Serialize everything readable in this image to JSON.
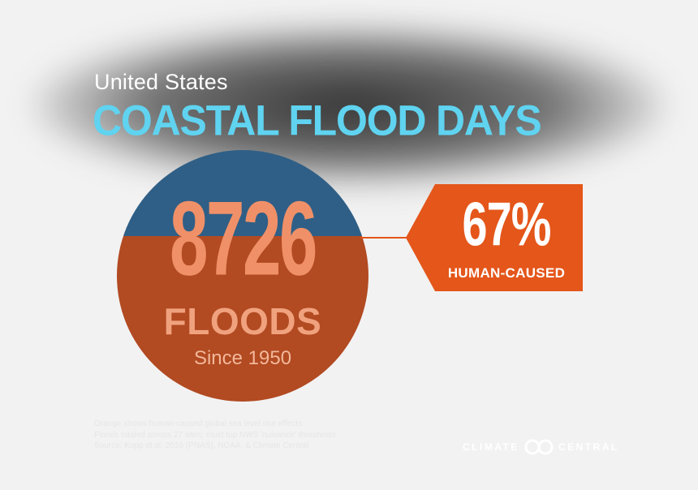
{
  "header": {
    "subtitle": "United States",
    "title": "COASTAL FLOOD  DAYS"
  },
  "stat": {
    "number": "8726",
    "label": "FLOODS",
    "since": "Since 1950"
  },
  "badge": {
    "percent": "67%",
    "caption": "HUMAN-CAUSED"
  },
  "footnotes": [
    "Orange shows human-caused global sea level rise effects",
    "Floods totaled across 27 sites; must top NWS 'nuisance' thresholds",
    "Source: Kopp et al. 2016 (PNAS), NOAA, & Climate Central"
  ],
  "brand": {
    "left": "CLIMATE",
    "right": "CENTRAL",
    "logo": "climate-central-logo-icon"
  },
  "colors": {
    "title": "#5fd3f0",
    "circle_top": "#2f5f86",
    "circle_bottom": "#b24a22",
    "badge": "#e4561a"
  }
}
